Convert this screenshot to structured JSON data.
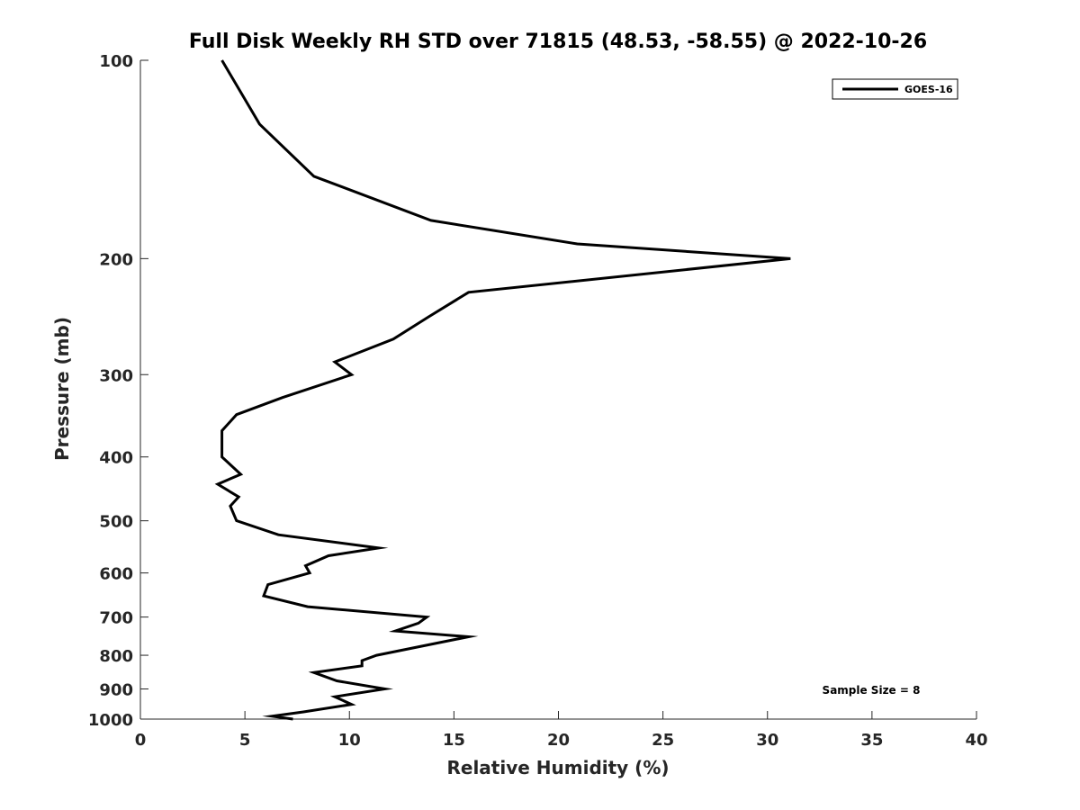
{
  "chart_data": {
    "type": "line",
    "title": "Full Disk Weekly RH STD over 71815 (48.53, -58.55) @ 2022-10-26",
    "xlabel": "Relative Humidity (%)",
    "ylabel": "Pressure (mb)",
    "xlim": [
      0,
      40
    ],
    "ylim": [
      100,
      1000
    ],
    "yscale": "log-reversed",
    "xticks": [
      0,
      5,
      10,
      15,
      20,
      25,
      30,
      35,
      40
    ],
    "xtick_labels": [
      "0",
      "5",
      "10",
      "15",
      "20",
      "25",
      "30",
      "35",
      "40"
    ],
    "yticks": [
      100,
      200,
      300,
      400,
      500,
      600,
      700,
      800,
      900,
      1000
    ],
    "ytick_labels": [
      "100",
      "200",
      "300",
      "400",
      "500",
      "600",
      "700",
      "800",
      "900",
      "1000"
    ],
    "legend": {
      "position": "top-right",
      "entries": [
        "GOES-16"
      ]
    },
    "annotation": "Sample Size = 8",
    "series": [
      {
        "name": "GOES-16",
        "color": "#000000",
        "points": [
          [
            3.9,
            100
          ],
          [
            5.7,
            125
          ],
          [
            8.3,
            150
          ],
          [
            13.9,
            175
          ],
          [
            20.9,
            190
          ],
          [
            31.1,
            200
          ],
          [
            15.7,
            225
          ],
          [
            13.8,
            245
          ],
          [
            12.1,
            265
          ],
          [
            9.3,
            287
          ],
          [
            10.1,
            300
          ],
          [
            6.8,
            325
          ],
          [
            4.6,
            345
          ],
          [
            3.9,
            365
          ],
          [
            3.9,
            400
          ],
          [
            4.8,
            425
          ],
          [
            3.7,
            440
          ],
          [
            4.7,
            460
          ],
          [
            4.3,
            475
          ],
          [
            4.6,
            500
          ],
          [
            6.6,
            525
          ],
          [
            11.4,
            550
          ],
          [
            9.0,
            565
          ],
          [
            7.9,
            585
          ],
          [
            8.1,
            600
          ],
          [
            6.1,
            625
          ],
          [
            5.9,
            650
          ],
          [
            8.0,
            675
          ],
          [
            13.7,
            700
          ],
          [
            13.3,
            715
          ],
          [
            12.2,
            735
          ],
          [
            15.7,
            750
          ],
          [
            11.3,
            800
          ],
          [
            10.6,
            815
          ],
          [
            10.6,
            830
          ],
          [
            8.3,
            850
          ],
          [
            9.4,
            875
          ],
          [
            11.7,
            900
          ],
          [
            9.3,
            925
          ],
          [
            10.1,
            950
          ],
          [
            7.8,
            975
          ],
          [
            6.3,
            990
          ],
          [
            7.3,
            1000
          ]
        ]
      }
    ]
  }
}
